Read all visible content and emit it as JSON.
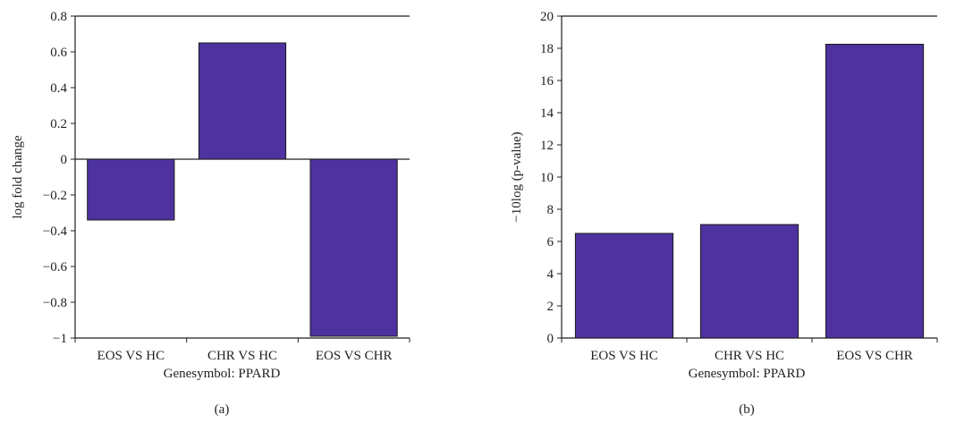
{
  "colors": {
    "bar": "#4e32a0",
    "bar_stroke": "#1a1a1a",
    "axis": "#231f20"
  },
  "chart_data": [
    {
      "type": "bar",
      "panel_label": "(a)",
      "categories": [
        "EOS VS HC",
        "CHR VS HC",
        "EOS VS CHR"
      ],
      "values": [
        -0.34,
        0.65,
        -0.99
      ],
      "xlabel": "Genesymbol: PPARD",
      "ylabel": "log fold change",
      "ylim": [
        -1,
        0.8
      ],
      "yticks": [
        0.8,
        0.6,
        0.4,
        0.2,
        0,
        -0.2,
        -0.4,
        -0.6,
        -0.8,
        -1
      ],
      "ytick_labels": [
        "0.8",
        "0.6",
        "0.4",
        "0.2",
        "0",
        "−0.2",
        "−0.4",
        "−0.6",
        "−0.8",
        "−1"
      ],
      "grid": false
    },
    {
      "type": "bar",
      "panel_label": "(b)",
      "categories": [
        "EOS VS HC",
        "CHR VS HC",
        "EOS VS CHR"
      ],
      "values": [
        6.5,
        7.05,
        18.25
      ],
      "xlabel": "Genesymbol: PPARD",
      "ylabel": "−10log (p-value)",
      "ylim": [
        0,
        20
      ],
      "yticks": [
        20,
        18,
        16,
        14,
        12,
        10,
        8,
        6,
        4,
        2,
        0
      ],
      "ytick_labels": [
        "20",
        "18",
        "16",
        "14",
        "12",
        "10",
        "8",
        "6",
        "4",
        "2",
        "0"
      ],
      "grid": false
    }
  ]
}
